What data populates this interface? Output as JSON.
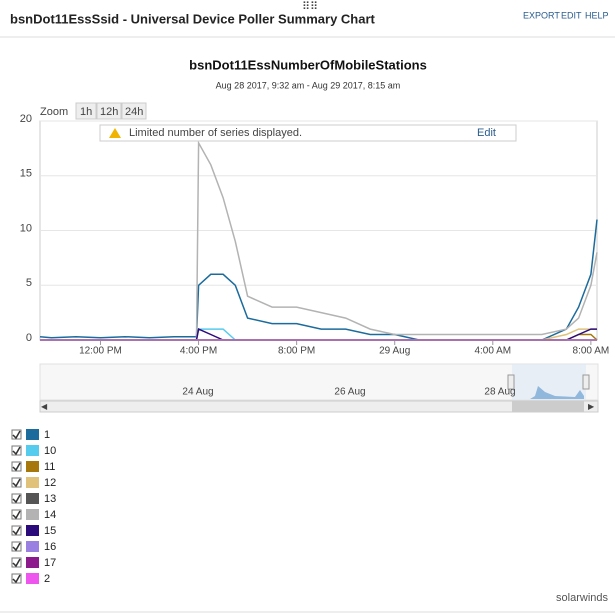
{
  "header": {
    "title": "bsnDot11EssSsid - Universal Device Poller Summary Chart",
    "links": [
      "EXPORT",
      "EDIT",
      "HELP"
    ]
  },
  "zoom": {
    "label": "Zoom",
    "buttons": [
      "1h",
      "12h",
      "24h"
    ]
  },
  "notice": {
    "text": "Limited number of series displayed.",
    "link": "Edit"
  },
  "navigator": {
    "labels": [
      "24 Aug",
      "26 Aug",
      "28 Aug"
    ]
  },
  "footer": {
    "brand": "solarwinds"
  },
  "chart_data": {
    "type": "line",
    "title": "bsnDot11EssNumberOfMobileStations",
    "subtitle": "Aug 28 2017, 9:32 am - Aug 29 2017, 8:15 am",
    "x": [
      "2017-08-28T09:32",
      "2017-08-28T10:00",
      "2017-08-28T11:00",
      "2017-08-28T12:00",
      "2017-08-28T13:00",
      "2017-08-28T14:00",
      "2017-08-28T15:00",
      "2017-08-28T15:55",
      "2017-08-28T16:00",
      "2017-08-28T16:30",
      "2017-08-28T17:00",
      "2017-08-28T17:30",
      "2017-08-28T18:00",
      "2017-08-28T19:00",
      "2017-08-28T20:00",
      "2017-08-28T21:00",
      "2017-08-28T22:00",
      "2017-08-28T23:00",
      "2017-08-29T00:00",
      "2017-08-29T01:00",
      "2017-08-29T02:00",
      "2017-08-29T03:00",
      "2017-08-29T04:00",
      "2017-08-29T05:00",
      "2017-08-29T06:00",
      "2017-08-29T07:00",
      "2017-08-29T07:30",
      "2017-08-29T08:00",
      "2017-08-29T08:15"
    ],
    "xlim": [
      "2017-08-28T09:32",
      "2017-08-29T08:15"
    ],
    "xticks": [
      {
        "value": "2017-08-28T12:00",
        "label": "12:00 PM"
      },
      {
        "value": "2017-08-28T16:00",
        "label": "4:00 PM"
      },
      {
        "value": "2017-08-28T20:00",
        "label": "8:00 PM"
      },
      {
        "value": "2017-08-29T00:00",
        "label": "29 Aug"
      },
      {
        "value": "2017-08-29T04:00",
        "label": "4:00 AM"
      },
      {
        "value": "2017-08-29T08:00",
        "label": "8:00 AM"
      }
    ],
    "ylim": [
      0,
      20
    ],
    "yticks": [
      0,
      5,
      10,
      15,
      20
    ],
    "grid": true,
    "series": [
      {
        "name": "1",
        "color": "#1b6b9c",
        "values": [
          0.3,
          0.2,
          0.3,
          0.2,
          0.3,
          0.2,
          0.3,
          0.3,
          5,
          6,
          6,
          5,
          2,
          1.5,
          1.5,
          1,
          1,
          0.5,
          0.5,
          0,
          0,
          0,
          0,
          0,
          0,
          1,
          3,
          6,
          11
        ]
      },
      {
        "name": "10",
        "color": "#55ccee",
        "values": [
          0,
          0,
          0,
          0,
          0,
          0,
          0,
          0,
          1,
          1,
          1,
          0,
          0,
          0,
          0,
          0,
          0,
          0,
          0,
          0,
          0,
          0,
          0,
          0,
          0,
          0,
          0,
          0,
          0
        ]
      },
      {
        "name": "11",
        "color": "#a6770b",
        "values": [
          0,
          0,
          0,
          0,
          0,
          0,
          0,
          0,
          0,
          0,
          0,
          0,
          0,
          0,
          0,
          0,
          0,
          0,
          0,
          0,
          0,
          0,
          0,
          0,
          0,
          0,
          0.5,
          0.5,
          0
        ]
      },
      {
        "name": "12",
        "color": "#e0c27a",
        "values": [
          0,
          0,
          0,
          0,
          0,
          0,
          0,
          0,
          0,
          0,
          0,
          0,
          0,
          0,
          0,
          0,
          0,
          0,
          0,
          0,
          0,
          0,
          0,
          0,
          0,
          0.5,
          1,
          1,
          1
        ]
      },
      {
        "name": "13",
        "color": "#555555",
        "values": [
          0,
          0,
          0,
          0,
          0,
          0,
          0,
          0,
          0,
          0,
          0,
          0,
          0,
          0,
          0,
          0,
          0,
          0,
          0,
          0,
          0,
          0,
          0,
          0,
          0,
          0,
          0,
          0,
          0
        ]
      },
      {
        "name": "14",
        "color": "#b3b3b3",
        "values": [
          0,
          0,
          0,
          0,
          0,
          0,
          0,
          0,
          18,
          16,
          13,
          9,
          4,
          3,
          3,
          2.5,
          2,
          1,
          0.5,
          0.5,
          0.5,
          0.5,
          0.5,
          0.5,
          0.5,
          1,
          2,
          5,
          8
        ]
      },
      {
        "name": "15",
        "color": "#2b0a7c",
        "values": [
          0,
          0,
          0,
          0,
          0,
          0,
          0,
          0,
          1,
          0.5,
          0,
          0,
          0,
          0,
          0,
          0,
          0,
          0,
          0,
          0,
          0,
          0,
          0,
          0,
          0,
          0,
          0.5,
          1,
          1
        ]
      },
      {
        "name": "16",
        "color": "#9a80e0",
        "values": [
          0,
          0,
          0,
          0,
          0,
          0,
          0,
          0,
          0,
          0,
          0,
          0,
          0,
          0,
          0,
          0,
          0,
          0,
          0,
          0,
          0,
          0,
          0,
          0,
          0,
          0,
          0,
          0,
          0
        ]
      },
      {
        "name": "17",
        "color": "#8c1a8c",
        "values": [
          0,
          0,
          0,
          0,
          0,
          0,
          0,
          0,
          0,
          0,
          0,
          0,
          0,
          0,
          0,
          0,
          0,
          0,
          0,
          0,
          0,
          0,
          0,
          0,
          0,
          0,
          0,
          0,
          0
        ]
      },
      {
        "name": "2",
        "color": "#ee55ee",
        "values": [
          0,
          0,
          0,
          0,
          0,
          0,
          0,
          0,
          0,
          0,
          0,
          0,
          0,
          0,
          0,
          0,
          0,
          0,
          0,
          0,
          0,
          0,
          0,
          0,
          0,
          0,
          0,
          0,
          0
        ]
      }
    ]
  }
}
